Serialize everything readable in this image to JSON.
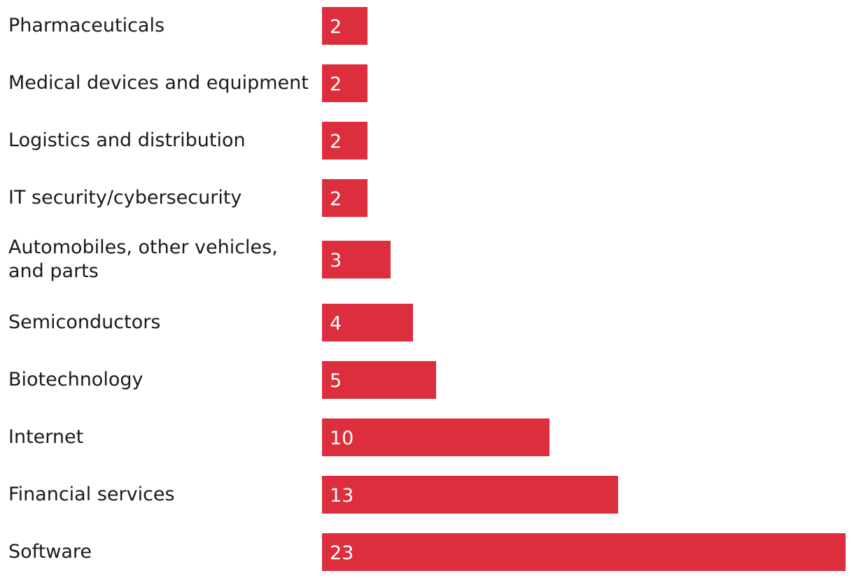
{
  "chart_data": {
    "type": "bar",
    "orientation": "horizontal",
    "title": "",
    "xlabel": "",
    "ylabel": "",
    "categories": [
      "Pharmaceuticals",
      "Medical devices and equipment",
      "Logistics and distribution",
      "IT security/cybersecurity",
      "Automobiles, other vehicles, and parts",
      "Semiconductors",
      "Biotechnology",
      "Internet",
      "Financial services",
      "Software"
    ],
    "values": [
      2,
      2,
      2,
      2,
      3,
      4,
      5,
      10,
      13,
      23
    ],
    "data_labels": [
      "2",
      "2",
      "2",
      "2",
      "3",
      "4",
      "5",
      "10",
      "13",
      "23"
    ],
    "xlim": [
      0,
      23
    ],
    "grid": false,
    "legend": "none",
    "colors": {
      "bar": "#dc2e3d",
      "value_text": "#ffffff",
      "label_text": "#1a1a1a"
    }
  }
}
